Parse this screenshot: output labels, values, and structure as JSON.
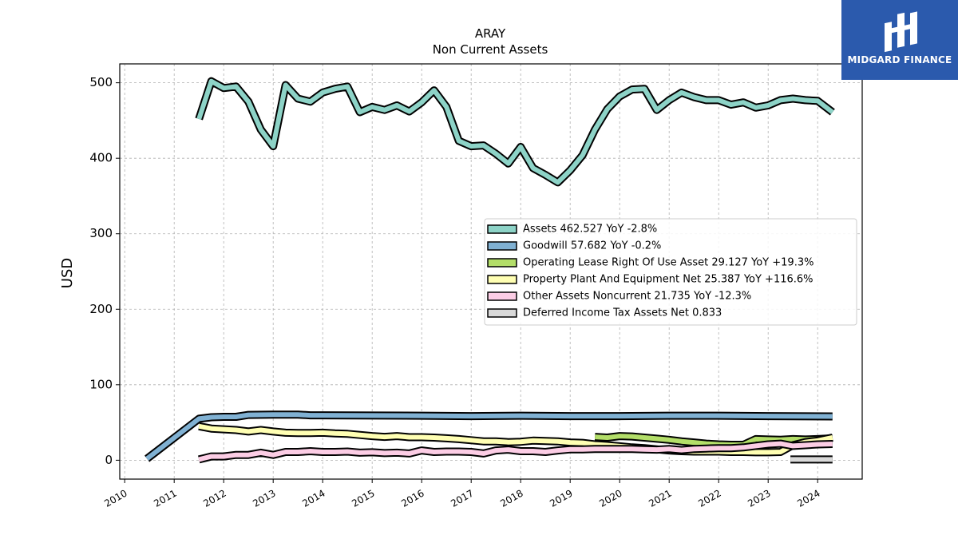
{
  "header": {
    "title": "ARAY",
    "subtitle": "Non Current  Assets"
  },
  "brand": {
    "name": "MIDGARD FINANCE",
    "color": "#2b5aad"
  },
  "chart_data": {
    "type": "area",
    "title": "ARAY",
    "subtitle": "Non Current  Assets",
    "xlabel": "",
    "ylabel": "USD",
    "xlim": [
      2009.9,
      2024.9
    ],
    "ylim": [
      -25,
      525
    ],
    "x_ticks": [
      "2010",
      "2011",
      "2012",
      "2013",
      "2014",
      "2015",
      "2016",
      "2017",
      "2018",
      "2019",
      "2020",
      "2021",
      "2022",
      "2023",
      "2024"
    ],
    "y_ticks": [
      0,
      100,
      200,
      300,
      400,
      500
    ],
    "grid": true,
    "legend_position": "center-right",
    "series": [
      {
        "name": "Assets",
        "legend_label": "Assets  462.527 YoY -2.8%",
        "color": "#8dd3c7",
        "points": [
          [
            2011.5,
            452
          ],
          [
            2011.75,
            502
          ],
          [
            2012.0,
            493
          ],
          [
            2012.25,
            495
          ],
          [
            2012.5,
            475
          ],
          [
            2012.75,
            438
          ],
          [
            2013.0,
            416
          ],
          [
            2013.25,
            497
          ],
          [
            2013.5,
            479
          ],
          [
            2013.75,
            475
          ],
          [
            2014.0,
            487
          ],
          [
            2014.25,
            492
          ],
          [
            2014.5,
            495
          ],
          [
            2014.75,
            461
          ],
          [
            2015.0,
            468
          ],
          [
            2015.25,
            464
          ],
          [
            2015.5,
            470
          ],
          [
            2015.75,
            462
          ],
          [
            2016.0,
            474
          ],
          [
            2016.25,
            490
          ],
          [
            2016.5,
            468
          ],
          [
            2016.75,
            423
          ],
          [
            2017.0,
            416
          ],
          [
            2017.25,
            417
          ],
          [
            2017.5,
            406
          ],
          [
            2017.75,
            393
          ],
          [
            2018.0,
            415
          ],
          [
            2018.25,
            387
          ],
          [
            2018.5,
            378
          ],
          [
            2018.75,
            368
          ],
          [
            2019.0,
            384
          ],
          [
            2019.25,
            404
          ],
          [
            2019.5,
            438
          ],
          [
            2019.75,
            465
          ],
          [
            2020.0,
            482
          ],
          [
            2020.25,
            491
          ],
          [
            2020.5,
            492
          ],
          [
            2020.75,
            464
          ],
          [
            2021.0,
            477
          ],
          [
            2021.25,
            487
          ],
          [
            2021.5,
            481
          ],
          [
            2021.75,
            477
          ],
          [
            2022.0,
            477
          ],
          [
            2022.25,
            471
          ],
          [
            2022.5,
            474
          ],
          [
            2022.75,
            467
          ],
          [
            2023.0,
            470
          ],
          [
            2023.25,
            477
          ],
          [
            2023.5,
            479
          ],
          [
            2023.75,
            477
          ],
          [
            2024.0,
            476
          ],
          [
            2024.3,
            461
          ]
        ]
      },
      {
        "name": "Goodwill",
        "legend_label": "Goodwill  57.682 YoY -0.2%",
        "color": "#80b1d3",
        "points": [
          [
            2010.45,
            2
          ],
          [
            2011.5,
            55
          ],
          [
            2011.75,
            57
          ],
          [
            2012.0,
            57.5
          ],
          [
            2012.25,
            57.5
          ],
          [
            2012.5,
            60
          ],
          [
            2013.0,
            60.5
          ],
          [
            2013.5,
            60.5
          ],
          [
            2013.75,
            59.5
          ],
          [
            2014.0,
            59.5
          ],
          [
            2016.0,
            59
          ],
          [
            2017.0,
            58.5
          ],
          [
            2018.0,
            59
          ],
          [
            2019.0,
            58.5
          ],
          [
            2020.0,
            58.5
          ],
          [
            2021.0,
            59
          ],
          [
            2022.0,
            59
          ],
          [
            2023.0,
            58.5
          ],
          [
            2024.3,
            58
          ]
        ]
      },
      {
        "name": "Operating Lease Right Of Use Asset",
        "legend_label": "Operating Lease Right Of Use Asset  29.127 YoY +19.3%",
        "color": "#b3de69",
        "points": [
          [
            2019.5,
            31
          ],
          [
            2019.75,
            30
          ],
          [
            2020.0,
            32
          ],
          [
            2020.25,
            31.5
          ],
          [
            2020.5,
            30
          ],
          [
            2020.75,
            28.5
          ],
          [
            2021.0,
            27
          ],
          [
            2021.25,
            25
          ],
          [
            2021.5,
            23.5
          ],
          [
            2021.75,
            22
          ],
          [
            2022.0,
            21
          ],
          [
            2022.25,
            20.5
          ],
          [
            2022.5,
            20.5
          ],
          [
            2022.75,
            28
          ],
          [
            2023.0,
            27.5
          ],
          [
            2023.25,
            27
          ],
          [
            2023.5,
            28
          ],
          [
            2023.75,
            27.5
          ],
          [
            2024.0,
            28
          ],
          [
            2024.3,
            29
          ]
        ]
      },
      {
        "name": "Property Plant And Equipment Net",
        "legend_label": "Property Plant And Equipment Net  25.387 YoY +116.6%",
        "color": "#ffffb3",
        "points": [
          [
            2011.5,
            45
          ],
          [
            2011.75,
            42
          ],
          [
            2012.0,
            41
          ],
          [
            2012.25,
            40
          ],
          [
            2012.5,
            38
          ],
          [
            2012.75,
            40
          ],
          [
            2013.0,
            38
          ],
          [
            2013.25,
            36.5
          ],
          [
            2013.5,
            36
          ],
          [
            2013.75,
            36
          ],
          [
            2014.0,
            36.5
          ],
          [
            2014.25,
            35.5
          ],
          [
            2014.5,
            35
          ],
          [
            2014.75,
            33.5
          ],
          [
            2015.0,
            32
          ],
          [
            2015.25,
            31
          ],
          [
            2015.5,
            32
          ],
          [
            2015.75,
            30.5
          ],
          [
            2016.0,
            30.5
          ],
          [
            2016.25,
            30
          ],
          [
            2016.5,
            29
          ],
          [
            2016.75,
            28
          ],
          [
            2017.0,
            26.5
          ],
          [
            2017.25,
            25
          ],
          [
            2017.5,
            25
          ],
          [
            2017.75,
            24
          ],
          [
            2018.0,
            24.5
          ],
          [
            2018.25,
            26
          ],
          [
            2018.5,
            25.5
          ],
          [
            2018.75,
            25
          ],
          [
            2019.0,
            23.5
          ],
          [
            2019.25,
            23
          ],
          [
            2019.5,
            21
          ],
          [
            2019.75,
            20
          ],
          [
            2020.0,
            18.5
          ],
          [
            2020.25,
            17
          ],
          [
            2020.5,
            16
          ],
          [
            2020.75,
            14.5
          ],
          [
            2021.0,
            13
          ],
          [
            2021.25,
            12
          ],
          [
            2021.5,
            11.5
          ],
          [
            2021.75,
            11.5
          ],
          [
            2022.0,
            11.5
          ],
          [
            2022.25,
            11
          ],
          [
            2022.5,
            11
          ],
          [
            2022.75,
            10.5
          ],
          [
            2023.0,
            10.5
          ],
          [
            2023.25,
            11
          ],
          [
            2023.5,
            20
          ],
          [
            2023.75,
            24
          ],
          [
            2024.0,
            26
          ],
          [
            2024.3,
            30
          ]
        ]
      },
      {
        "name": "Other Assets Noncurrent",
        "legend_label": "Other Assets Noncurrent  21.735 YoY -12.3%",
        "color": "#fccde5",
        "points": [
          [
            2011.5,
            1
          ],
          [
            2011.75,
            5
          ],
          [
            2012.0,
            5
          ],
          [
            2012.25,
            7
          ],
          [
            2012.5,
            7
          ],
          [
            2012.75,
            10
          ],
          [
            2013.0,
            7
          ],
          [
            2013.25,
            11
          ],
          [
            2013.5,
            11
          ],
          [
            2013.75,
            12
          ],
          [
            2014.0,
            11
          ],
          [
            2014.25,
            11
          ],
          [
            2014.5,
            11.5
          ],
          [
            2014.75,
            10
          ],
          [
            2015.0,
            10.5
          ],
          [
            2015.25,
            9.5
          ],
          [
            2015.5,
            10
          ],
          [
            2015.75,
            9
          ],
          [
            2016.0,
            13
          ],
          [
            2016.25,
            11
          ],
          [
            2016.5,
            11.5
          ],
          [
            2016.75,
            11.5
          ],
          [
            2017.0,
            11
          ],
          [
            2017.25,
            9
          ],
          [
            2017.5,
            13
          ],
          [
            2017.75,
            14
          ],
          [
            2018.0,
            12
          ],
          [
            2018.25,
            12
          ],
          [
            2018.5,
            11
          ],
          [
            2018.75,
            13
          ],
          [
            2019.0,
            14.5
          ],
          [
            2019.25,
            14.5
          ],
          [
            2019.5,
            15
          ],
          [
            2019.75,
            15
          ],
          [
            2020.0,
            15
          ],
          [
            2020.25,
            15
          ],
          [
            2020.5,
            14.5
          ],
          [
            2020.75,
            14
          ],
          [
            2021.0,
            15
          ],
          [
            2021.25,
            13.5
          ],
          [
            2021.5,
            15
          ],
          [
            2021.75,
            15.5
          ],
          [
            2022.0,
            16
          ],
          [
            2022.25,
            16
          ],
          [
            2022.5,
            17
          ],
          [
            2022.75,
            19
          ],
          [
            2023.0,
            21
          ],
          [
            2023.25,
            22
          ],
          [
            2023.5,
            19
          ],
          [
            2023.75,
            20
          ],
          [
            2024.0,
            21
          ],
          [
            2024.3,
            21.5
          ]
        ]
      },
      {
        "name": "Deferred Income Tax Assets Net",
        "legend_label": "Deferred Income Tax Assets Net  0.833",
        "color": "#d9d9d9",
        "points": [
          [
            2023.45,
            1
          ],
          [
            2024.3,
            1
          ]
        ]
      }
    ]
  }
}
